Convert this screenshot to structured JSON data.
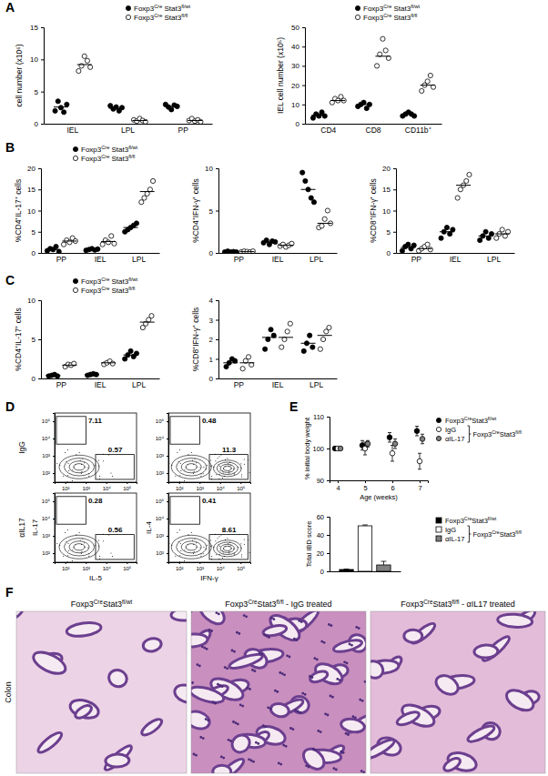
{
  "panel_labels": [
    "A",
    "B",
    "C",
    "D",
    "E",
    "F"
  ],
  "chart_data": [
    {
      "type": "dot",
      "y_label": "cell number (x10⁶)",
      "categories": [
        "IEL",
        "LPL",
        "PP"
      ],
      "legend": "top",
      "ylim": [
        0,
        15
      ],
      "yticks": [
        0,
        5,
        10,
        15
      ],
      "series": [
        {
          "name": "Foxp3Cre Stat3fl/wt",
          "color": "#000000",
          "marker": "filled",
          "values": [
            [
              2.0,
              3.5,
              2.5,
              1.8,
              3.0
            ],
            [
              2.8,
              2.3,
              2.6,
              2.0,
              2.5
            ],
            [
              3.0,
              2.6,
              2.2,
              2.9,
              2.7
            ]
          ],
          "means": [
            2.6,
            2.4,
            2.7
          ]
        },
        {
          "name": "Foxp3Cre Stat3fl/fl",
          "color": "#000000",
          "marker": "open",
          "values": [
            [
              8.2,
              9.0,
              10.5,
              9.8,
              8.8
            ],
            [
              0.6,
              0.4,
              0.8,
              0.5,
              0.3
            ],
            [
              0.5,
              0.8,
              0.4,
              0.6,
              0.3
            ]
          ],
          "means": [
            9.2,
            0.5,
            0.5
          ]
        }
      ]
    },
    {
      "type": "dot",
      "y_label": "IEL cell number (x10⁵)",
      "categories": [
        "CD4",
        "CD8",
        "CD11b⁺"
      ],
      "legend": "top",
      "ylim": [
        0,
        50
      ],
      "yticks": [
        0,
        10,
        20,
        30,
        40,
        50
      ],
      "series": [
        {
          "name": "Foxp3Cre Stat3fl/wt",
          "color": "#000000",
          "marker": "filled",
          "values": [
            [
              3,
              5,
              4,
              6,
              4
            ],
            [
              9,
              10,
              11,
              8,
              10
            ],
            [
              4,
              5,
              6,
              5,
              4
            ]
          ],
          "means": [
            4.5,
            10,
            5
          ]
        },
        {
          "name": "Foxp3Cre Stat3fl/fl",
          "color": "#000000",
          "marker": "open",
          "values": [
            [
              11,
              13,
              12,
              14,
              12
            ],
            [
              30,
              36,
              44,
              38,
              34
            ],
            [
              17,
              20,
              22,
              25,
              19
            ]
          ],
          "means": [
            12,
            35,
            20
          ]
        }
      ]
    },
    {
      "type": "dot",
      "y_label": "%CD4⁺IL-17⁺ cells",
      "categories": [
        "PP",
        "IEL",
        "LPL"
      ],
      "legend": "top",
      "ylim": [
        0,
        20
      ],
      "yticks": [
        0,
        5,
        10,
        15,
        20
      ],
      "series": [
        {
          "name": "Foxp3Cre Stat3fl/wt",
          "color": "#000000",
          "marker": "filled",
          "values": [
            [
              0.5,
              1.0,
              0.8,
              1.5,
              0.3
            ],
            [
              0.6,
              0.8,
              1.0,
              0.7,
              0.9
            ],
            [
              5,
              5.5,
              6,
              6.5,
              7
            ]
          ],
          "means": [
            0.8,
            0.8,
            6
          ]
        },
        {
          "name": "Foxp3Cre Stat3fl/fl",
          "color": "#000000",
          "marker": "open",
          "values": [
            [
              2.0,
              3.0,
              2.5,
              3.5,
              2.8
            ],
            [
              2.0,
              3.0,
              2.5,
              4.0,
              2.2
            ],
            [
              12,
              13,
              14,
              15,
              17
            ]
          ],
          "means": [
            2.8,
            2.7,
            14.5
          ]
        }
      ]
    },
    {
      "type": "dot",
      "y_label": "%CD4⁺IFN-γ⁺ cells",
      "categories": [
        "PP",
        "IEL",
        "LPL"
      ],
      "ylim": [
        0,
        10
      ],
      "yticks": [
        0,
        5,
        10
      ],
      "series": [
        {
          "color": "#000000",
          "marker": "filled",
          "values": [
            [
              0.1,
              0.2,
              0.1,
              0.15,
              0.1
            ],
            [
              1.2,
              1.5,
              1.0,
              1.4,
              1.3
            ],
            [
              9.5,
              8.5,
              7.5,
              6.5,
              6.0
            ]
          ],
          "means": [
            0.1,
            1.3,
            7.5
          ]
        },
        {
          "color": "#000000",
          "marker": "open",
          "values": [
            [
              0.1,
              0.2,
              0.15,
              0.1,
              0.2
            ],
            [
              0.8,
              1.0,
              0.7,
              0.9,
              1.1
            ],
            [
              3.0,
              3.2,
              4.0,
              5.0,
              3.5
            ]
          ],
          "means": [
            0.15,
            0.9,
            3.5
          ]
        }
      ]
    },
    {
      "type": "dot",
      "y_label": "%CD8⁺IFN-γ⁺ cells",
      "categories": [
        "PP",
        "IEL",
        "LPL"
      ],
      "ylim": [
        0,
        20
      ],
      "yticks": [
        0,
        5,
        10,
        15,
        20
      ],
      "series": [
        {
          "color": "#000000",
          "marker": "filled",
          "values": [
            [
              0.5,
              1.5,
              2.0,
              1.0,
              1.8
            ],
            [
              3.5,
              5,
              6,
              4.5,
              5.5
            ],
            [
              3,
              4,
              5,
              3.5,
              4.5
            ]
          ],
          "means": [
            1.3,
            5,
            4
          ]
        },
        {
          "color": "#000000",
          "marker": "open",
          "values": [
            [
              0.5,
              1.0,
              1.5,
              2.0,
              0.8
            ],
            [
              13,
              15,
              16,
              17,
              18.5
            ],
            [
              3.5,
              4.5,
              5.5,
              4,
              5
            ]
          ],
          "means": [
            1,
            16,
            4.5
          ]
        }
      ]
    },
    {
      "type": "dot",
      "y_label": "%CD4⁺IL-17⁺ cells",
      "categories": [
        "PP",
        "IEL",
        "LPL"
      ],
      "legend": "top",
      "ylim": [
        0,
        10
      ],
      "yticks": [
        0,
        5,
        10
      ],
      "series": [
        {
          "name": "Foxp3Cre Stat3fl/wt",
          "color": "#000000",
          "marker": "filled",
          "values": [
            [
              0.3,
              0.4,
              0.5,
              0.3
            ],
            [
              0.4,
              0.5,
              0.6,
              0.5
            ],
            [
              2.5,
              3.0,
              3.5,
              2.8,
              3.2
            ]
          ],
          "means": [
            0.4,
            0.5,
            3
          ]
        },
        {
          "name": "Foxp3Cre Stat3fl/fl",
          "color": "#000000",
          "marker": "open",
          "values": [
            [
              1.5,
              1.8,
              1.7,
              1.9
            ],
            [
              1.8,
              2.0,
              2.2,
              1.9
            ],
            [
              6.5,
              7.0,
              7.5,
              8.0
            ]
          ],
          "means": [
            1.7,
            2,
            7.2
          ]
        }
      ]
    },
    {
      "type": "dot",
      "y_label": "%CD8⁺IFN-γ⁺ cells",
      "categories": [
        "PP",
        "IEL",
        "LPL"
      ],
      "ylim": [
        0,
        4
      ],
      "yticks": [
        0,
        1,
        2,
        3,
        4
      ],
      "series": [
        {
          "color": "#000000",
          "marker": "filled",
          "values": [
            [
              0.6,
              0.8,
              1.0,
              0.9
            ],
            [
              1.5,
              2.0,
              2.5,
              2.2
            ],
            [
              1.4,
              1.8,
              2.2,
              1.6
            ]
          ],
          "means": [
            0.8,
            2.1,
            1.8
          ]
        },
        {
          "color": "#000000",
          "marker": "open",
          "values": [
            [
              0.5,
              0.9,
              1.1,
              0.7
            ],
            [
              1.6,
              2.0,
              2.4,
              2.8
            ],
            [
              1.5,
              2.0,
              2.4,
              2.6
            ]
          ],
          "means": [
            0.8,
            2.1,
            2.2
          ]
        }
      ]
    },
    {
      "type": "flow",
      "log": true,
      "rows": [
        "IgG",
        "αIL17"
      ],
      "plots": [
        {
          "x_label": "IL-5",
          "y_label": "IL-17",
          "gates": [
            [
              7.11,
              0.57
            ],
            [
              0.28,
              0.56
            ]
          ]
        },
        {
          "x_label": "IFN-γ",
          "y_label": "IL-4",
          "gates": [
            [
              0.48,
              11.3
            ],
            [
              0.41,
              8.61
            ]
          ]
        }
      ],
      "xlim": [
        30,
        300000
      ],
      "ylim": [
        30,
        300000
      ],
      "xticks": [
        {
          "value": 100,
          "label": "10²"
        },
        {
          "value": 1000,
          "label": "10³"
        },
        {
          "value": 10000,
          "label": "10⁴"
        },
        {
          "value": 100000,
          "label": "10⁵"
        }
      ],
      "yticks": [
        {
          "value": 100,
          "label": "10²"
        },
        {
          "value": 1000,
          "label": "10³"
        },
        {
          "value": 10000,
          "label": "10⁴"
        },
        {
          "value": 100000,
          "label": "10⁵"
        }
      ]
    },
    {
      "type": "scatter",
      "x_label": "Age (weeks)",
      "y_label": "% initial body weight",
      "x": [
        4,
        5,
        6,
        7
      ],
      "xlim": [
        3.7,
        7.3
      ],
      "xticks": [
        4,
        5,
        6,
        7
      ],
      "ylim": [
        90,
        110
      ],
      "yticks": [
        90,
        100,
        110
      ],
      "legend": "right",
      "annotations": [
        "Foxp3CreStat3fl/fl"
      ],
      "series": [
        {
          "name": "Foxp3CreStat3fl/wt",
          "color": "#000000",
          "marker": "filled",
          "values": [
            100,
            101,
            103.5,
            105.5
          ],
          "errors": [
            0,
            1.5,
            1.5,
            1.5
          ]
        },
        {
          "name": "IgG",
          "color": "#000000",
          "marker": "open",
          "values": [
            100,
            100,
            98.5,
            96
          ],
          "errors": [
            0,
            2,
            2.5,
            2.5
          ]
        },
        {
          "name": "αIL-17",
          "color": "#808080",
          "marker": "filled",
          "values": [
            100,
            101.5,
            101.5,
            103
          ],
          "errors": [
            0,
            1,
            1.5,
            1.5
          ]
        }
      ]
    },
    {
      "type": "bar",
      "y_label": "Total IBD score",
      "categories": [
        null
      ],
      "ylim": [
        0,
        60
      ],
      "yticks": [
        0,
        20,
        40,
        60
      ],
      "legend": "right",
      "annotations": [
        "Foxp3CreStat3fl/fl"
      ],
      "series": [
        {
          "name": "Foxp3CreStat3fl/wt",
          "color": "#000000",
          "values": [
            2
          ],
          "errors": [
            0.5
          ]
        },
        {
          "name": "IgG",
          "color": "#ffffff",
          "values": [
            50
          ],
          "errors": [
            1
          ]
        },
        {
          "name": "αIL-17",
          "color": "#808080",
          "values": [
            7
          ],
          "errors": [
            4
          ]
        }
      ]
    }
  ],
  "histology": {
    "row_label": "Colon",
    "titles": [
      "Foxp3CreStat3fl/wt",
      "Foxp3CreStat3fl/fl - IgG treated",
      "Foxp3CreStat3fl/fl - αIL17 treated"
    ]
  }
}
